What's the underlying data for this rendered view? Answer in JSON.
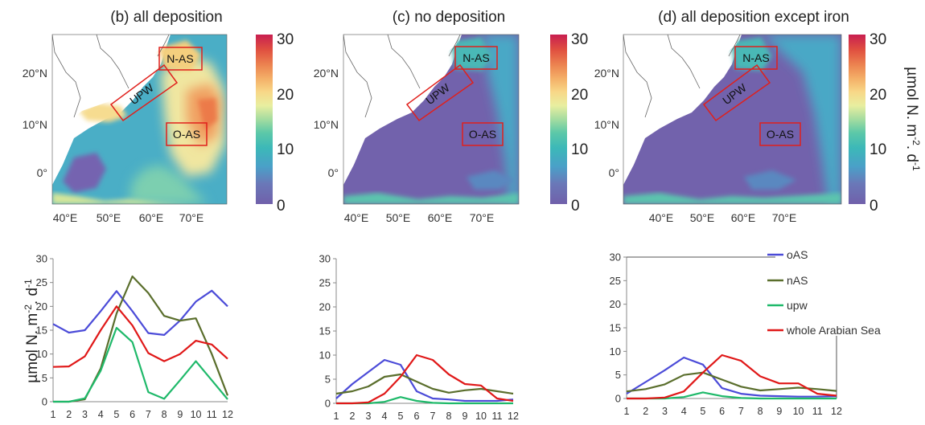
{
  "colorbar": {
    "ticks": [
      "30",
      "20",
      "10",
      "0"
    ],
    "unit_main": "µmol N. m",
    "unit_sup1": "-2",
    "unit_mid": ". d",
    "unit_sup2": "-1",
    "colors": [
      "#7060aa",
      "#6a78b8",
      "#4aa0c8",
      "#3cb8b8",
      "#5cc8a8",
      "#a4dca0",
      "#e8eea0",
      "#f8d888",
      "#f4b068",
      "#ec8450",
      "#e05040",
      "#c81e50"
    ]
  },
  "map_axes": {
    "y": [
      "20°N",
      "10°N",
      "0°"
    ],
    "x": [
      "40°E",
      "50°E",
      "60°E",
      "70°E"
    ]
  },
  "regions": {
    "nas": "N-AS",
    "upw": "UPW",
    "oas": "O-AS"
  },
  "maps": [
    {
      "title": "(b) all deposition"
    },
    {
      "title": "(c) no deposition"
    },
    {
      "title": "(d) all deposition except iron"
    }
  ],
  "line_unit": {
    "main": "µmol N. m",
    "sup1": "-2",
    "mid": ". d",
    "sup2": "-1"
  },
  "legend": [
    {
      "label": "oAS",
      "color": "#4b4bd8"
    },
    {
      "label": "nAS",
      "color": "#5a6e2c"
    },
    {
      "label": "upw",
      "color": "#1fb96a"
    },
    {
      "label": "whole Arabian Sea",
      "color": "#e01818"
    }
  ],
  "chart_data": [
    {
      "type": "line",
      "title": "",
      "x": [
        1,
        2,
        3,
        4,
        5,
        6,
        7,
        8,
        9,
        10,
        11,
        12
      ],
      "xticks": [
        "1",
        "2",
        "3",
        "4",
        "5",
        "6",
        "7",
        "8",
        "9",
        "10",
        "11",
        "12"
      ],
      "yticks": [
        "30",
        "25",
        "20",
        "15",
        "10",
        "5",
        "0"
      ],
      "ylim": [
        0,
        30
      ],
      "series": [
        {
          "name": "oAS",
          "color": "#4b4bd8",
          "values": [
            16.3,
            14.5,
            15,
            19,
            23.2,
            19,
            14.4,
            14,
            17,
            21,
            23.3,
            20
          ]
        },
        {
          "name": "nAS",
          "color": "#5a6e2c",
          "values": [
            0,
            0,
            0.5,
            7,
            18.5,
            26.3,
            22.8,
            18,
            17,
            17.5,
            10,
            1.3
          ]
        },
        {
          "name": "upw",
          "color": "#1fb96a",
          "values": [
            0,
            0,
            0.7,
            6.5,
            15.5,
            12.5,
            2,
            0.6,
            4.5,
            8.5,
            4.5,
            0.5
          ]
        },
        {
          "name": "whole Arabian Sea",
          "color": "#e01818",
          "values": [
            7.3,
            7.4,
            9.5,
            15,
            20,
            16,
            10.2,
            8.5,
            10,
            12.8,
            12,
            9
          ]
        }
      ]
    },
    {
      "type": "line",
      "title": "",
      "x": [
        1,
        2,
        3,
        4,
        5,
        6,
        7,
        8,
        9,
        10,
        11,
        12
      ],
      "xticks": [
        "1",
        "2",
        "3",
        "4",
        "5",
        "6",
        "7",
        "8",
        "9",
        "10",
        "11",
        "12"
      ],
      "yticks": [
        "30",
        "25",
        "20",
        "15",
        "10",
        "5",
        "0"
      ],
      "ylim": [
        0,
        30
      ],
      "series": [
        {
          "name": "oAS",
          "color": "#4b4bd8",
          "values": [
            1,
            4,
            6.5,
            9,
            8,
            2.5,
            1,
            0.8,
            0.5,
            0.5,
            0.5,
            0.8
          ]
        },
        {
          "name": "nAS",
          "color": "#5a6e2c",
          "values": [
            2,
            2.5,
            3.5,
            5.5,
            6,
            4.5,
            3,
            2.2,
            2.7,
            3,
            2.5,
            2
          ]
        },
        {
          "name": "upw",
          "color": "#1fb96a",
          "values": [
            0,
            0,
            0,
            0.3,
            1.3,
            0.5,
            0.1,
            0,
            0,
            0,
            0,
            0
          ]
        },
        {
          "name": "whole Arabian Sea",
          "color": "#e01818",
          "values": [
            0,
            0,
            0.2,
            2,
            5.5,
            10,
            9,
            6,
            4,
            3.7,
            1,
            0.5
          ]
        }
      ]
    },
    {
      "type": "line",
      "title": "",
      "x": [
        1,
        2,
        3,
        4,
        5,
        6,
        7,
        8,
        9,
        10,
        11,
        12
      ],
      "xticks": [
        "1",
        "2",
        "3",
        "4",
        "5",
        "6",
        "7",
        "8",
        "9",
        "10",
        "11",
        "12"
      ],
      "yticks": [
        "30",
        "25",
        "20",
        "15",
        "10",
        "5",
        "0"
      ],
      "ylim": [
        0,
        30
      ],
      "series": [
        {
          "name": "oAS",
          "color": "#4b4bd8",
          "values": [
            1,
            3.5,
            6,
            8.7,
            7.2,
            2.2,
            1,
            0.6,
            0.5,
            0.4,
            0.4,
            0.5
          ]
        },
        {
          "name": "nAS",
          "color": "#5a6e2c",
          "values": [
            1.5,
            2,
            3,
            5,
            5.5,
            4,
            2.5,
            1.7,
            2,
            2.3,
            2,
            1.6
          ]
        },
        {
          "name": "upw",
          "color": "#1fb96a",
          "values": [
            0,
            0,
            0,
            0.3,
            1.3,
            0.5,
            0.1,
            0,
            0,
            0,
            0,
            0
          ]
        },
        {
          "name": "whole Arabian Sea",
          "color": "#e01818",
          "values": [
            0,
            0,
            0.2,
            1.5,
            5.5,
            9.2,
            8,
            4.7,
            3.2,
            3.2,
            1,
            0.6
          ]
        }
      ]
    }
  ]
}
